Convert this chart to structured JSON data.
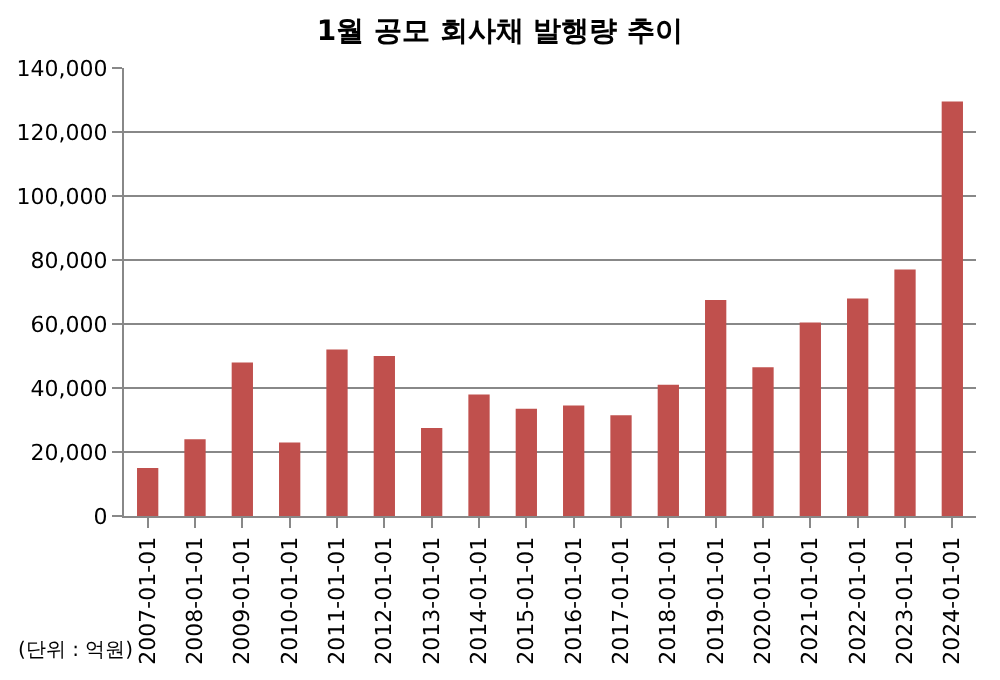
{
  "chart_data": {
    "type": "bar",
    "title": "1월 공모 회사채 발행량 추이",
    "categories": [
      "2007-01-01",
      "2008-01-01",
      "2009-01-01",
      "2010-01-01",
      "2011-01-01",
      "2012-01-01",
      "2013-01-01",
      "2014-01-01",
      "2015-01-01",
      "2016-01-01",
      "2017-01-01",
      "2018-01-01",
      "2019-01-01",
      "2020-01-01",
      "2021-01-01",
      "2022-01-01",
      "2023-01-01",
      "2024-01-01"
    ],
    "values": [
      15000,
      24000,
      48000,
      23000,
      52000,
      50000,
      27500,
      38000,
      33500,
      34500,
      31500,
      41000,
      67500,
      46500,
      60500,
      68000,
      77000,
      129500
    ],
    "color": "#c0504d",
    "ylim": [
      0,
      140000
    ],
    "yticks": [
      {
        "value": 0,
        "label": "0"
      },
      {
        "value": 20000,
        "label": "20,000"
      },
      {
        "value": 40000,
        "label": "40,000"
      },
      {
        "value": 60000,
        "label": "60,000"
      },
      {
        "value": 80000,
        "label": "80,000"
      },
      {
        "value": 100000,
        "label": "100,000"
      },
      {
        "value": 120000,
        "label": "120,000"
      },
      {
        "value": 140000,
        "label": "140,000"
      }
    ],
    "grid": "y",
    "annotations": [
      "(단위 : 억원)"
    ]
  }
}
